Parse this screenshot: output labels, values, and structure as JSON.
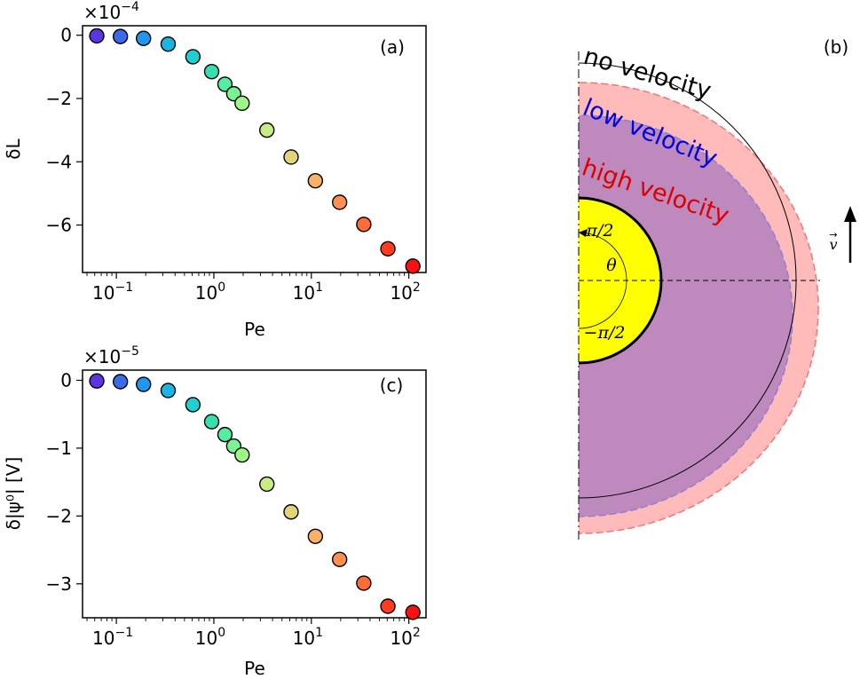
{
  "chart_data": [
    {
      "type": "scatter",
      "panel_label": "(a)",
      "xlabel": "Pe",
      "ylabel": "δL",
      "x_scale": "log",
      "xlim": [
        0.045,
        150
      ],
      "ylim": [
        -7.5,
        0.3
      ],
      "y_multiplier_text": "×10",
      "y_multiplier_exp": "−4",
      "x_ticks": [
        {
          "value": 0.1,
          "base": "10",
          "exp": "−1"
        },
        {
          "value": 1,
          "base": "10",
          "exp": "0"
        },
        {
          "value": 10,
          "base": "10",
          "exp": "1"
        },
        {
          "value": 100,
          "base": "10",
          "exp": "2"
        }
      ],
      "y_ticks": [
        {
          "value": 0,
          "label": "0"
        },
        {
          "value": -2,
          "label": "−2"
        },
        {
          "value": -4,
          "label": "−4"
        },
        {
          "value": -6,
          "label": "−6"
        }
      ],
      "x": [
        0.063,
        0.11,
        0.19,
        0.34,
        0.61,
        0.95,
        1.3,
        1.6,
        1.95,
        3.5,
        6.2,
        11,
        19.5,
        34.5,
        61,
        110
      ],
      "y": [
        -0.02,
        -0.04,
        -0.1,
        -0.28,
        -0.68,
        -1.15,
        -1.55,
        -1.85,
        -2.15,
        -3.0,
        -3.85,
        -4.6,
        -5.28,
        -5.98,
        -6.75,
        -7.3
      ]
    },
    {
      "type": "scatter",
      "panel_label": "(c)",
      "xlabel": "Pe",
      "ylabel": "δ|ψ⁰| [V]",
      "x_scale": "log",
      "xlim": [
        0.045,
        150
      ],
      "ylim": [
        -3.5,
        0.15
      ],
      "y_multiplier_text": "×10",
      "y_multiplier_exp": "−5",
      "x_ticks": [
        {
          "value": 0.1,
          "base": "10",
          "exp": "−1"
        },
        {
          "value": 1,
          "base": "10",
          "exp": "0"
        },
        {
          "value": 10,
          "base": "10",
          "exp": "1"
        },
        {
          "value": 100,
          "base": "10",
          "exp": "2"
        }
      ],
      "y_ticks": [
        {
          "value": 0,
          "label": "0"
        },
        {
          "value": -1,
          "label": "−1"
        },
        {
          "value": -2,
          "label": "−2"
        },
        {
          "value": -3,
          "label": "−3"
        }
      ],
      "x": [
        0.063,
        0.11,
        0.19,
        0.34,
        0.61,
        0.95,
        1.3,
        1.6,
        1.95,
        3.5,
        6.2,
        11,
        19.5,
        34.5,
        61,
        110
      ],
      "y": [
        -0.01,
        -0.02,
        -0.06,
        -0.15,
        -0.36,
        -0.61,
        -0.8,
        -0.97,
        -1.1,
        -1.53,
        -1.94,
        -2.3,
        -2.64,
        -2.99,
        -3.33,
        -3.42
      ]
    },
    {
      "type": "diagram",
      "panel_label": "(b)",
      "labels": {
        "no_velocity": "no velocity",
        "low_velocity": "low velocity",
        "high_velocity": "high velocity",
        "top_angle": "π/2",
        "bottom_angle": "−π/2",
        "theta": "θ",
        "velocity_vector": "v"
      },
      "colors": {
        "core": "#ffff00",
        "low": "#aab0f6",
        "high": "#ff9c9c",
        "low_text": "#0000dd",
        "high_text": "#dd0000"
      }
    }
  ],
  "marker_colors": [
    "#5a35e0",
    "#3a6bea",
    "#2196f0",
    "#1ab5e0",
    "#20cfcf",
    "#36dfb0",
    "#55eda0",
    "#78f490",
    "#9df786",
    "#c7ec82",
    "#e2d478",
    "#f7b266",
    "#fc9050",
    "#ff6c38",
    "#ff3c20",
    "#ff1010"
  ]
}
